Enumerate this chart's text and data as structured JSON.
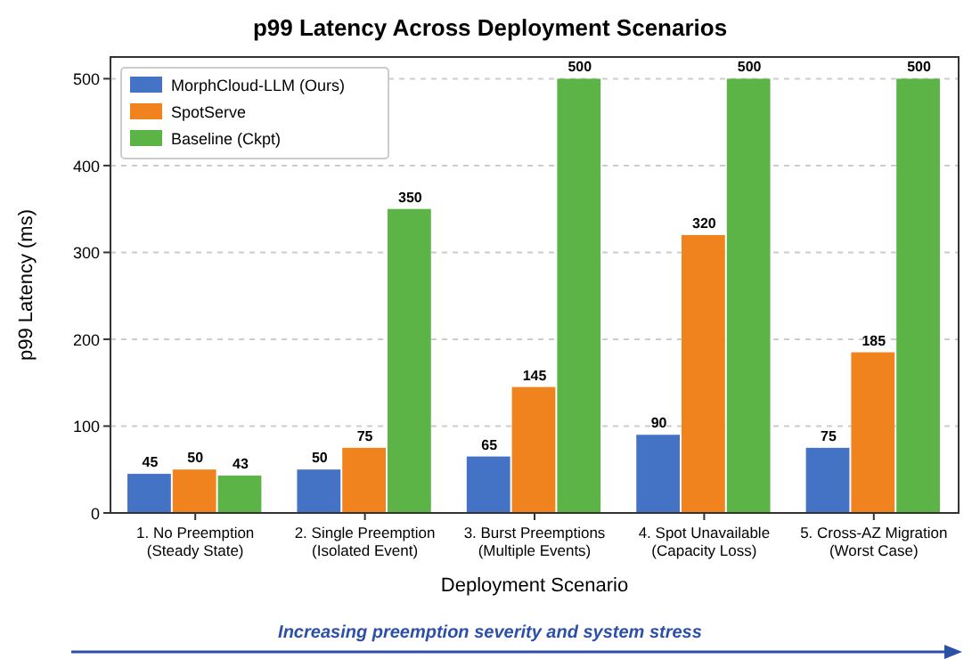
{
  "chart_data": {
    "type": "bar",
    "title": "p99 Latency Across Deployment Scenarios",
    "xlabel": "Deployment Scenario",
    "ylabel": "p99 Latency (ms)",
    "categories": [
      "1. No Preemption\n(Steady State)",
      "2. Single Preemption\n(Isolated Event)",
      "3. Burst Preemptions\n(Multiple Events)",
      "4. Spot Unavailable\n(Capacity Loss)",
      "5. Cross-AZ Migration\n(Worst Case)"
    ],
    "series": [
      {
        "name": "MorphCloud-LLM (Ours)",
        "color": "#4472c4",
        "values": [
          45,
          50,
          65,
          90,
          75
        ]
      },
      {
        "name": "SpotServe",
        "color": "#f0831e",
        "values": [
          50,
          75,
          145,
          320,
          185
        ]
      },
      {
        "name": "Baseline (Ckpt)",
        "color": "#5cb346",
        "values": [
          43,
          350,
          500,
          500,
          500
        ]
      }
    ],
    "ylim": [
      0,
      525
    ],
    "yticks": [
      0,
      100,
      200,
      300,
      400,
      500
    ],
    "grid": "y",
    "legend": "top left",
    "data_labels": true,
    "annotations": [
      "Increasing preemption severity and system stress"
    ]
  }
}
